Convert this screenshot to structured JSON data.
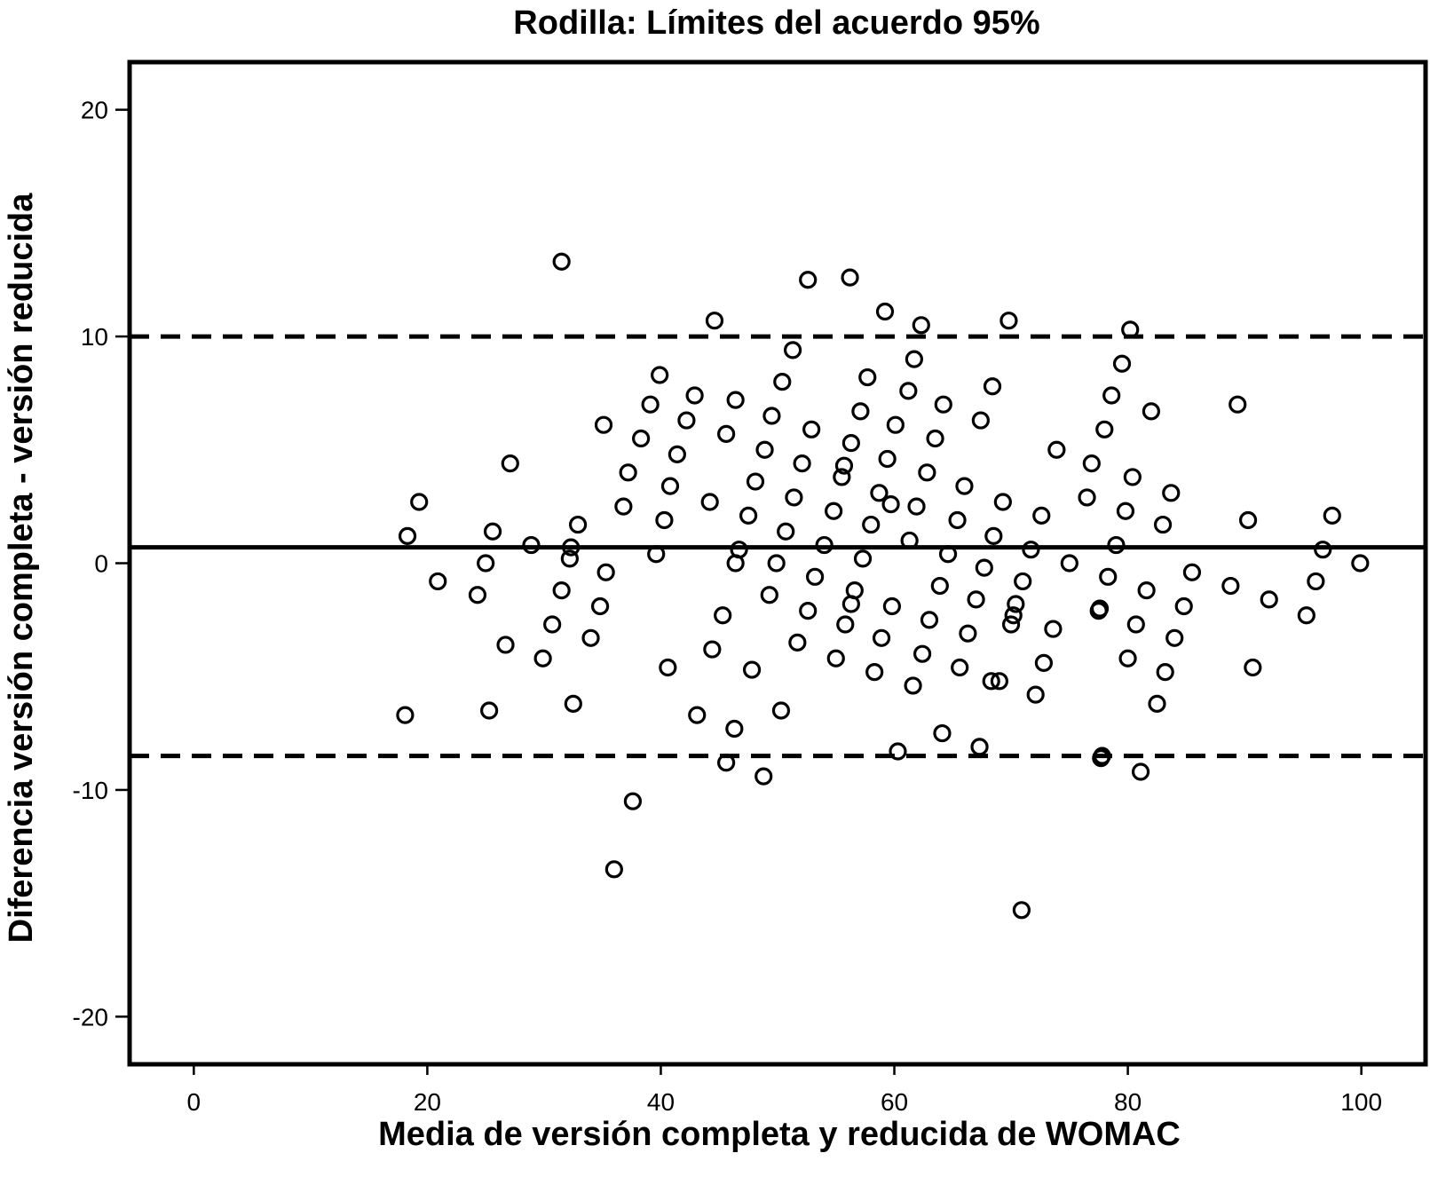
{
  "chart_data": {
    "type": "scatter",
    "title": "Rodilla: Límites del acuerdo 95%",
    "xlabel": "Media de versión completa y reducida de WOMAC",
    "ylabel": "Diferencia versión completa - versión reducida",
    "xlim": [
      -5.5,
      105.5
    ],
    "ylim": [
      -22.1,
      22.1
    ],
    "xticks": [
      0,
      20,
      40,
      60,
      80,
      100
    ],
    "yticks": [
      -20,
      -10,
      0,
      10,
      20
    ],
    "xtick_labels": [
      "0",
      "20",
      "40",
      "60",
      "80",
      "100"
    ],
    "ytick_labels": [
      "-20",
      "-10",
      "0",
      "10",
      "20"
    ],
    "grid": false,
    "reference_lines": [
      {
        "value": 0.7,
        "style": "solid"
      },
      {
        "value": 10.0,
        "style": "dashed"
      },
      {
        "value": -8.5,
        "style": "dashed"
      }
    ],
    "points": [
      [
        31.5,
        13.3
      ],
      [
        52.6,
        12.5
      ],
      [
        56.2,
        12.6
      ],
      [
        59.2,
        11.1
      ],
      [
        44.6,
        10.7
      ],
      [
        62.3,
        10.5
      ],
      [
        69.8,
        10.7
      ],
      [
        80.2,
        10.3
      ],
      [
        51.3,
        9.4
      ],
      [
        61.7,
        9.0
      ],
      [
        79.5,
        8.8
      ],
      [
        39.9,
        8.3
      ],
      [
        57.7,
        8.2
      ],
      [
        50.4,
        8.0
      ],
      [
        61.2,
        7.6
      ],
      [
        68.4,
        7.8
      ],
      [
        42.9,
        7.4
      ],
      [
        78.6,
        7.4
      ],
      [
        46.4,
        7.2
      ],
      [
        39.1,
        7.0
      ],
      [
        64.2,
        7.0
      ],
      [
        89.4,
        7.0
      ],
      [
        57.1,
        6.7
      ],
      [
        82.0,
        6.7
      ],
      [
        49.5,
        6.5
      ],
      [
        42.2,
        6.3
      ],
      [
        67.4,
        6.3
      ],
      [
        35.1,
        6.1
      ],
      [
        60.1,
        6.1
      ],
      [
        52.9,
        5.9
      ],
      [
        78.0,
        5.9
      ],
      [
        45.6,
        5.7
      ],
      [
        38.3,
        5.5
      ],
      [
        63.5,
        5.5
      ],
      [
        56.3,
        5.3
      ],
      [
        48.9,
        5.0
      ],
      [
        73.9,
        5.0
      ],
      [
        41.4,
        4.8
      ],
      [
        59.4,
        4.6
      ],
      [
        27.1,
        4.4
      ],
      [
        52.1,
        4.4
      ],
      [
        76.9,
        4.4
      ],
      [
        55.7,
        4.3
      ],
      [
        37.2,
        4.0
      ],
      [
        62.8,
        4.0
      ],
      [
        55.5,
        3.8
      ],
      [
        80.4,
        3.8
      ],
      [
        48.1,
        3.6
      ],
      [
        40.8,
        3.4
      ],
      [
        66.0,
        3.4
      ],
      [
        58.7,
        3.1
      ],
      [
        83.7,
        3.1
      ],
      [
        51.4,
        2.9
      ],
      [
        76.5,
        2.9
      ],
      [
        19.3,
        2.7
      ],
      [
        44.2,
        2.7
      ],
      [
        69.3,
        2.7
      ],
      [
        36.8,
        2.5
      ],
      [
        59.7,
        2.6
      ],
      [
        61.9,
        2.5
      ],
      [
        54.8,
        2.3
      ],
      [
        79.8,
        2.3
      ],
      [
        47.5,
        2.1
      ],
      [
        72.6,
        2.1
      ],
      [
        97.5,
        2.1
      ],
      [
        40.3,
        1.9
      ],
      [
        65.4,
        1.9
      ],
      [
        90.3,
        1.9
      ],
      [
        32.9,
        1.7
      ],
      [
        58.0,
        1.7
      ],
      [
        83.0,
        1.7
      ],
      [
        25.6,
        1.4
      ],
      [
        50.7,
        1.4
      ],
      [
        18.3,
        1.2
      ],
      [
        68.5,
        1.2
      ],
      [
        61.3,
        1.0
      ],
      [
        28.9,
        0.8
      ],
      [
        54.0,
        0.8
      ],
      [
        79.0,
        0.8
      ],
      [
        32.3,
        0.7
      ],
      [
        46.7,
        0.6
      ],
      [
        71.7,
        0.6
      ],
      [
        96.7,
        0.6
      ],
      [
        39.6,
        0.4
      ],
      [
        64.6,
        0.4
      ],
      [
        32.2,
        0.2
      ],
      [
        57.3,
        0.2
      ],
      [
        25.0,
        0.0
      ],
      [
        46.4,
        0.0
      ],
      [
        49.9,
        0.0
      ],
      [
        75.0,
        0.0
      ],
      [
        99.9,
        0.0
      ],
      [
        67.7,
        -0.2
      ],
      [
        35.3,
        -0.4
      ],
      [
        85.5,
        -0.4
      ],
      [
        53.2,
        -0.6
      ],
      [
        78.3,
        -0.6
      ],
      [
        20.9,
        -0.8
      ],
      [
        71.0,
        -0.8
      ],
      [
        96.1,
        -0.8
      ],
      [
        63.9,
        -1.0
      ],
      [
        88.8,
        -1.0
      ],
      [
        31.5,
        -1.2
      ],
      [
        56.6,
        -1.2
      ],
      [
        81.6,
        -1.2
      ],
      [
        24.3,
        -1.4
      ],
      [
        49.3,
        -1.4
      ],
      [
        67.0,
        -1.6
      ],
      [
        92.1,
        -1.6
      ],
      [
        56.3,
        -1.8
      ],
      [
        70.4,
        -1.8
      ],
      [
        34.8,
        -1.9
      ],
      [
        59.8,
        -1.9
      ],
      [
        84.8,
        -1.9
      ],
      [
        77.6,
        -2.0
      ],
      [
        52.6,
        -2.1
      ],
      [
        77.5,
        -2.1
      ],
      [
        70.2,
        -2.3
      ],
      [
        45.3,
        -2.3
      ],
      [
        95.3,
        -2.3
      ],
      [
        63.0,
        -2.5
      ],
      [
        55.8,
        -2.7
      ],
      [
        30.7,
        -2.7
      ],
      [
        80.7,
        -2.7
      ],
      [
        70.0,
        -2.7
      ],
      [
        73.6,
        -2.9
      ],
      [
        66.3,
        -3.1
      ],
      [
        34.0,
        -3.3
      ],
      [
        58.9,
        -3.3
      ],
      [
        84.0,
        -3.3
      ],
      [
        51.7,
        -3.5
      ],
      [
        26.7,
        -3.6
      ],
      [
        44.4,
        -3.8
      ],
      [
        62.4,
        -4.0
      ],
      [
        29.9,
        -4.2
      ],
      [
        55.0,
        -4.2
      ],
      [
        80.0,
        -4.2
      ],
      [
        72.8,
        -4.4
      ],
      [
        40.6,
        -4.6
      ],
      [
        65.6,
        -4.6
      ],
      [
        90.7,
        -4.6
      ],
      [
        47.8,
        -4.7
      ],
      [
        58.3,
        -4.8
      ],
      [
        83.2,
        -4.8
      ],
      [
        68.3,
        -5.2
      ],
      [
        69.0,
        -5.2
      ],
      [
        61.6,
        -5.4
      ],
      [
        72.1,
        -5.8
      ],
      [
        32.5,
        -6.2
      ],
      [
        82.5,
        -6.2
      ],
      [
        25.3,
        -6.5
      ],
      [
        50.3,
        -6.5
      ],
      [
        18.1,
        -6.7
      ],
      [
        43.1,
        -6.7
      ],
      [
        46.3,
        -7.3
      ],
      [
        64.1,
        -7.5
      ],
      [
        67.3,
        -8.1
      ],
      [
        60.3,
        -8.3
      ],
      [
        77.8,
        -8.5
      ],
      [
        77.7,
        -8.6
      ],
      [
        45.6,
        -8.8
      ],
      [
        48.8,
        -9.4
      ],
      [
        81.1,
        -9.2
      ],
      [
        37.6,
        -10.5
      ],
      [
        36.0,
        -13.5
      ],
      [
        70.9,
        -15.3
      ]
    ]
  }
}
